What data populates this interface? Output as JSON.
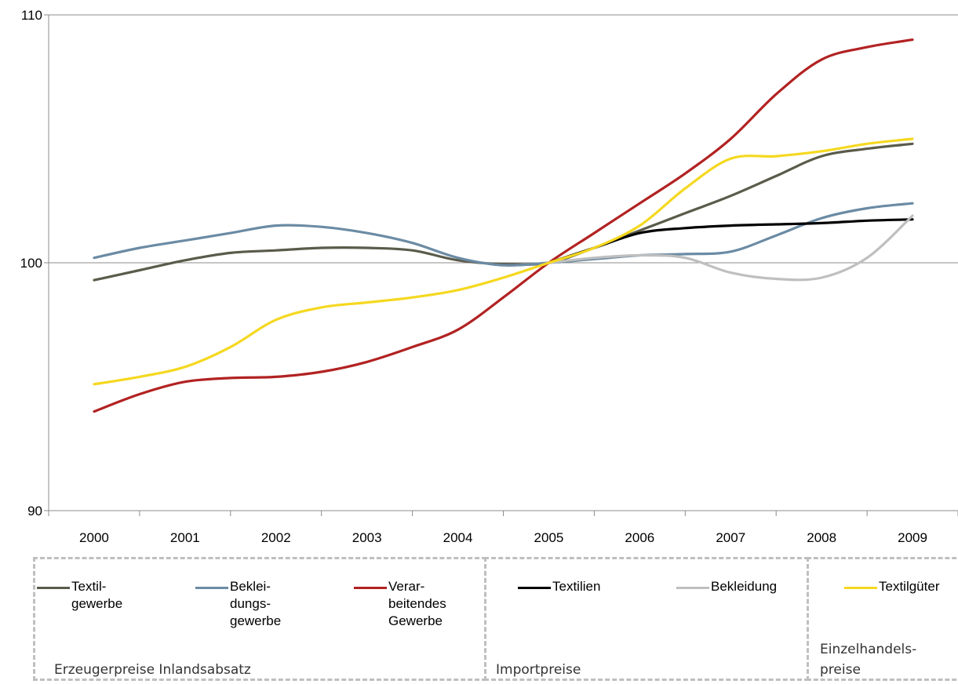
{
  "chart_data": {
    "type": "line",
    "title": "",
    "xlabel": "",
    "ylabel": "",
    "ylim": [
      90,
      110
    ],
    "y_ticks": [
      "90",
      "100",
      "110"
    ],
    "x_categories": [
      "2000",
      "2001",
      "2002",
      "2003",
      "2004",
      "2005",
      "2006",
      "2007",
      "2008",
      "2009"
    ],
    "gridlines": [
      100,
      110
    ],
    "x": [
      2000.0,
      2000.5,
      2001.0,
      2001.5,
      2002.0,
      2002.5,
      2003.0,
      2003.5,
      2004.0,
      2004.5,
      2005.0,
      2005.5,
      2006.0,
      2006.5,
      2007.0,
      2007.5,
      2008.0,
      2008.5,
      2009.0
    ],
    "series": [
      {
        "name": "Textil-\ngewerbe",
        "color": "#5b5b4b",
        "values": [
          99.3,
          99.7,
          100.1,
          100.4,
          100.5,
          100.6,
          100.6,
          100.5,
          100.1,
          99.95,
          100.0,
          100.6,
          101.3,
          102.0,
          102.7,
          103.5,
          104.3,
          104.6,
          104.8
        ]
      },
      {
        "name": "Beklei-\ndungs-\ngewerbe",
        "color": "#6b8ba4",
        "values": [
          100.2,
          100.6,
          100.9,
          101.2,
          101.5,
          101.45,
          101.2,
          100.8,
          100.2,
          99.9,
          100.0,
          100.15,
          100.3,
          100.35,
          100.45,
          101.1,
          101.8,
          102.2,
          102.4
        ]
      },
      {
        "name": "Verar-\nbeitendes\nGewerbe",
        "color": "#b22222",
        "values": [
          94.0,
          94.7,
          95.2,
          95.35,
          95.4,
          95.6,
          96.0,
          96.6,
          97.3,
          98.6,
          100.0,
          101.2,
          102.4,
          103.6,
          105.0,
          106.8,
          108.2,
          108.7,
          109.0
        ]
      },
      {
        "name": "Textilien",
        "color": "#000000",
        "values": [
          null,
          null,
          null,
          null,
          null,
          null,
          null,
          null,
          null,
          null,
          100.0,
          100.6,
          101.2,
          101.4,
          101.5,
          101.55,
          101.6,
          101.7,
          101.75
        ]
      },
      {
        "name": "Bekleidung",
        "color": "#bfbfbf",
        "values": [
          null,
          null,
          null,
          null,
          null,
          null,
          null,
          null,
          null,
          null,
          100.0,
          100.2,
          100.3,
          100.2,
          99.6,
          99.35,
          99.4,
          100.2,
          101.9
        ]
      },
      {
        "name": "Textilgüter",
        "color": "#f5d820",
        "values": [
          95.1,
          95.4,
          95.8,
          96.6,
          97.7,
          98.2,
          98.4,
          98.6,
          98.9,
          99.4,
          100.0,
          100.6,
          101.5,
          103.0,
          104.2,
          104.3,
          104.5,
          104.8,
          105.0
        ]
      }
    ],
    "legend_groups": [
      {
        "label": "Erzeugerpreise Inlandsabsatz",
        "series": [
          "Textil-\ngewerbe",
          "Beklei-\ndungs-\ngewerbe",
          "Verar-\nbeitendes\nGewerbe"
        ]
      },
      {
        "label": "Importpreise",
        "series": [
          "Textilien",
          "Bekleidung"
        ]
      },
      {
        "label": "Einzelhandels-\npreise",
        "series": [
          "Textilgüter"
        ]
      }
    ]
  },
  "legend": {
    "groups": {
      "producer": "Erzeugerpreise Inlandsabsatz",
      "import": "Importpreise",
      "retail": "Einzelhandels-\npreise"
    },
    "items": {
      "textilgewerbe": "Textil-\ngewerbe",
      "bekleidungsgewerbe": "Beklei-\ndungs-\ngewerbe",
      "verarbeitendes": "Verar-\nbeitendes\nGewerbe",
      "textilien": "Textilien",
      "bekleidung": "Bekleidung",
      "textilgueter": "Textilgüter"
    }
  }
}
